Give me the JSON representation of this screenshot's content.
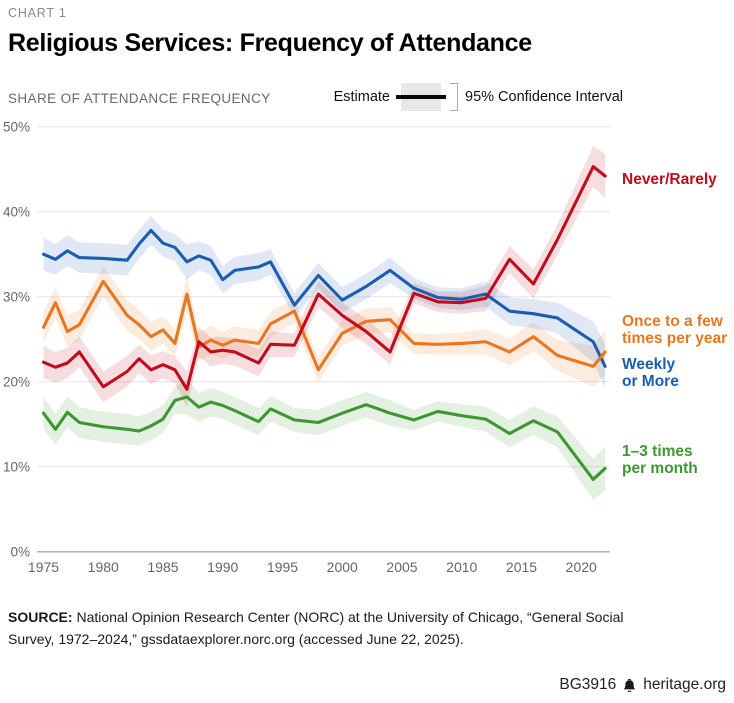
{
  "header": {
    "kicker": "CHART 1",
    "title": "Religious Services: Frequency of Attendance"
  },
  "legend": {
    "axis_label": "SHARE OF ATTENDANCE FREQUENCY",
    "estimate_label": "Estimate",
    "ci_label": "95% Confidence Interval"
  },
  "chart_data": {
    "type": "line",
    "title": "Religious Services: Frequency of Attendance",
    "ylabel": "SHARE OF ATTENDANCE FREQUENCY",
    "ylim": [
      0,
      50
    ],
    "grid": true,
    "legend_position": "right-edge-labels",
    "x": [
      1975,
      1976,
      1977,
      1978,
      1980,
      1982,
      1983,
      1984,
      1985,
      1986,
      1987,
      1988,
      1989,
      1990,
      1991,
      1993,
      1994,
      1996,
      1998,
      2000,
      2002,
      2004,
      2006,
      2008,
      2010,
      2012,
      2014,
      2016,
      2018,
      2021,
      2022
    ],
    "xticks": [
      1975,
      1980,
      1985,
      1990,
      1995,
      2000,
      2005,
      2010,
      2015,
      2020
    ],
    "ytick_values": [
      0,
      10,
      20,
      30,
      40,
      50
    ],
    "ytick_labels": [
      "0%",
      "10%",
      "20%",
      "30%",
      "40%",
      "50%"
    ],
    "ci_half_width": [
      1.9,
      1.8,
      1.8,
      1.8,
      1.8,
      1.8,
      1.7,
      1.7,
      1.6,
      1.6,
      2.1,
      1.7,
      1.7,
      1.6,
      1.6,
      1.6,
      1.5,
      1.4,
      1.5,
      1.5,
      1.5,
      1.5,
      1.2,
      1.2,
      1.3,
      1.5,
      1.6,
      1.7,
      1.8,
      2.4,
      2.6
    ],
    "draw_order": [
      3,
      2,
      1,
      0
    ],
    "series": [
      {
        "name": "never-rarely",
        "label_lines": [
          "Never/Rarely"
        ],
        "color": "#c00d1e",
        "values": [
          22.3,
          21.7,
          22.2,
          23.5,
          19.4,
          21.2,
          22.7,
          21.4,
          22.0,
          21.4,
          19.1,
          24.7,
          23.5,
          23.7,
          23.5,
          22.2,
          24.4,
          24.3,
          30.3,
          27.8,
          25.9,
          23.5,
          30.4,
          29.4,
          29.3,
          29.8,
          34.4,
          31.5,
          36.7,
          45.3,
          44.2
        ]
      },
      {
        "name": "once-to-few-times-per-year",
        "label_lines": [
          "Once to a few",
          "times per year"
        ],
        "color": "#e87722",
        "values": [
          26.4,
          29.3,
          25.9,
          26.7,
          31.8,
          27.8,
          26.7,
          25.3,
          26.1,
          24.5,
          30.3,
          24.1,
          24.9,
          24.3,
          24.9,
          24.5,
          26.8,
          28.3,
          21.4,
          25.7,
          27.1,
          27.3,
          24.5,
          24.4,
          24.5,
          24.7,
          23.5,
          25.3,
          23.1,
          21.8,
          23.5
        ]
      },
      {
        "name": "weekly-or-more",
        "label_lines": [
          "Weekly",
          "or More"
        ],
        "color": "#1b5eae",
        "values": [
          35.0,
          34.4,
          35.4,
          34.6,
          34.5,
          34.3,
          36.2,
          37.8,
          36.3,
          35.8,
          34.1,
          34.8,
          34.3,
          32.0,
          33.1,
          33.5,
          34.1,
          29.0,
          32.5,
          29.6,
          31.2,
          33.1,
          31.0,
          29.9,
          29.7,
          30.3,
          28.3,
          28.0,
          27.5,
          24.7,
          21.8
        ]
      },
      {
        "name": "one-to-three-times-per-month",
        "label_lines": [
          "1–3 times",
          "per month"
        ],
        "color": "#3e9733",
        "values": [
          16.3,
          14.4,
          16.4,
          15.2,
          14.7,
          14.4,
          14.2,
          14.8,
          15.6,
          17.8,
          18.2,
          17.0,
          17.6,
          17.2,
          16.6,
          15.3,
          16.8,
          15.5,
          15.2,
          16.3,
          17.3,
          16.3,
          15.5,
          16.5,
          16.0,
          15.6,
          13.9,
          15.4,
          14.1,
          8.5,
          9.8
        ]
      }
    ]
  },
  "footer": {
    "source_label": "SOURCE:",
    "source_text": " National Opinion Research Center (NORC) at the University of Chicago, “General Social Survey, 1972–2024,” gssdataexplorer.norc.org (accessed June 22, 2025).",
    "report_id": "BG3916",
    "site": "heritage.org"
  }
}
